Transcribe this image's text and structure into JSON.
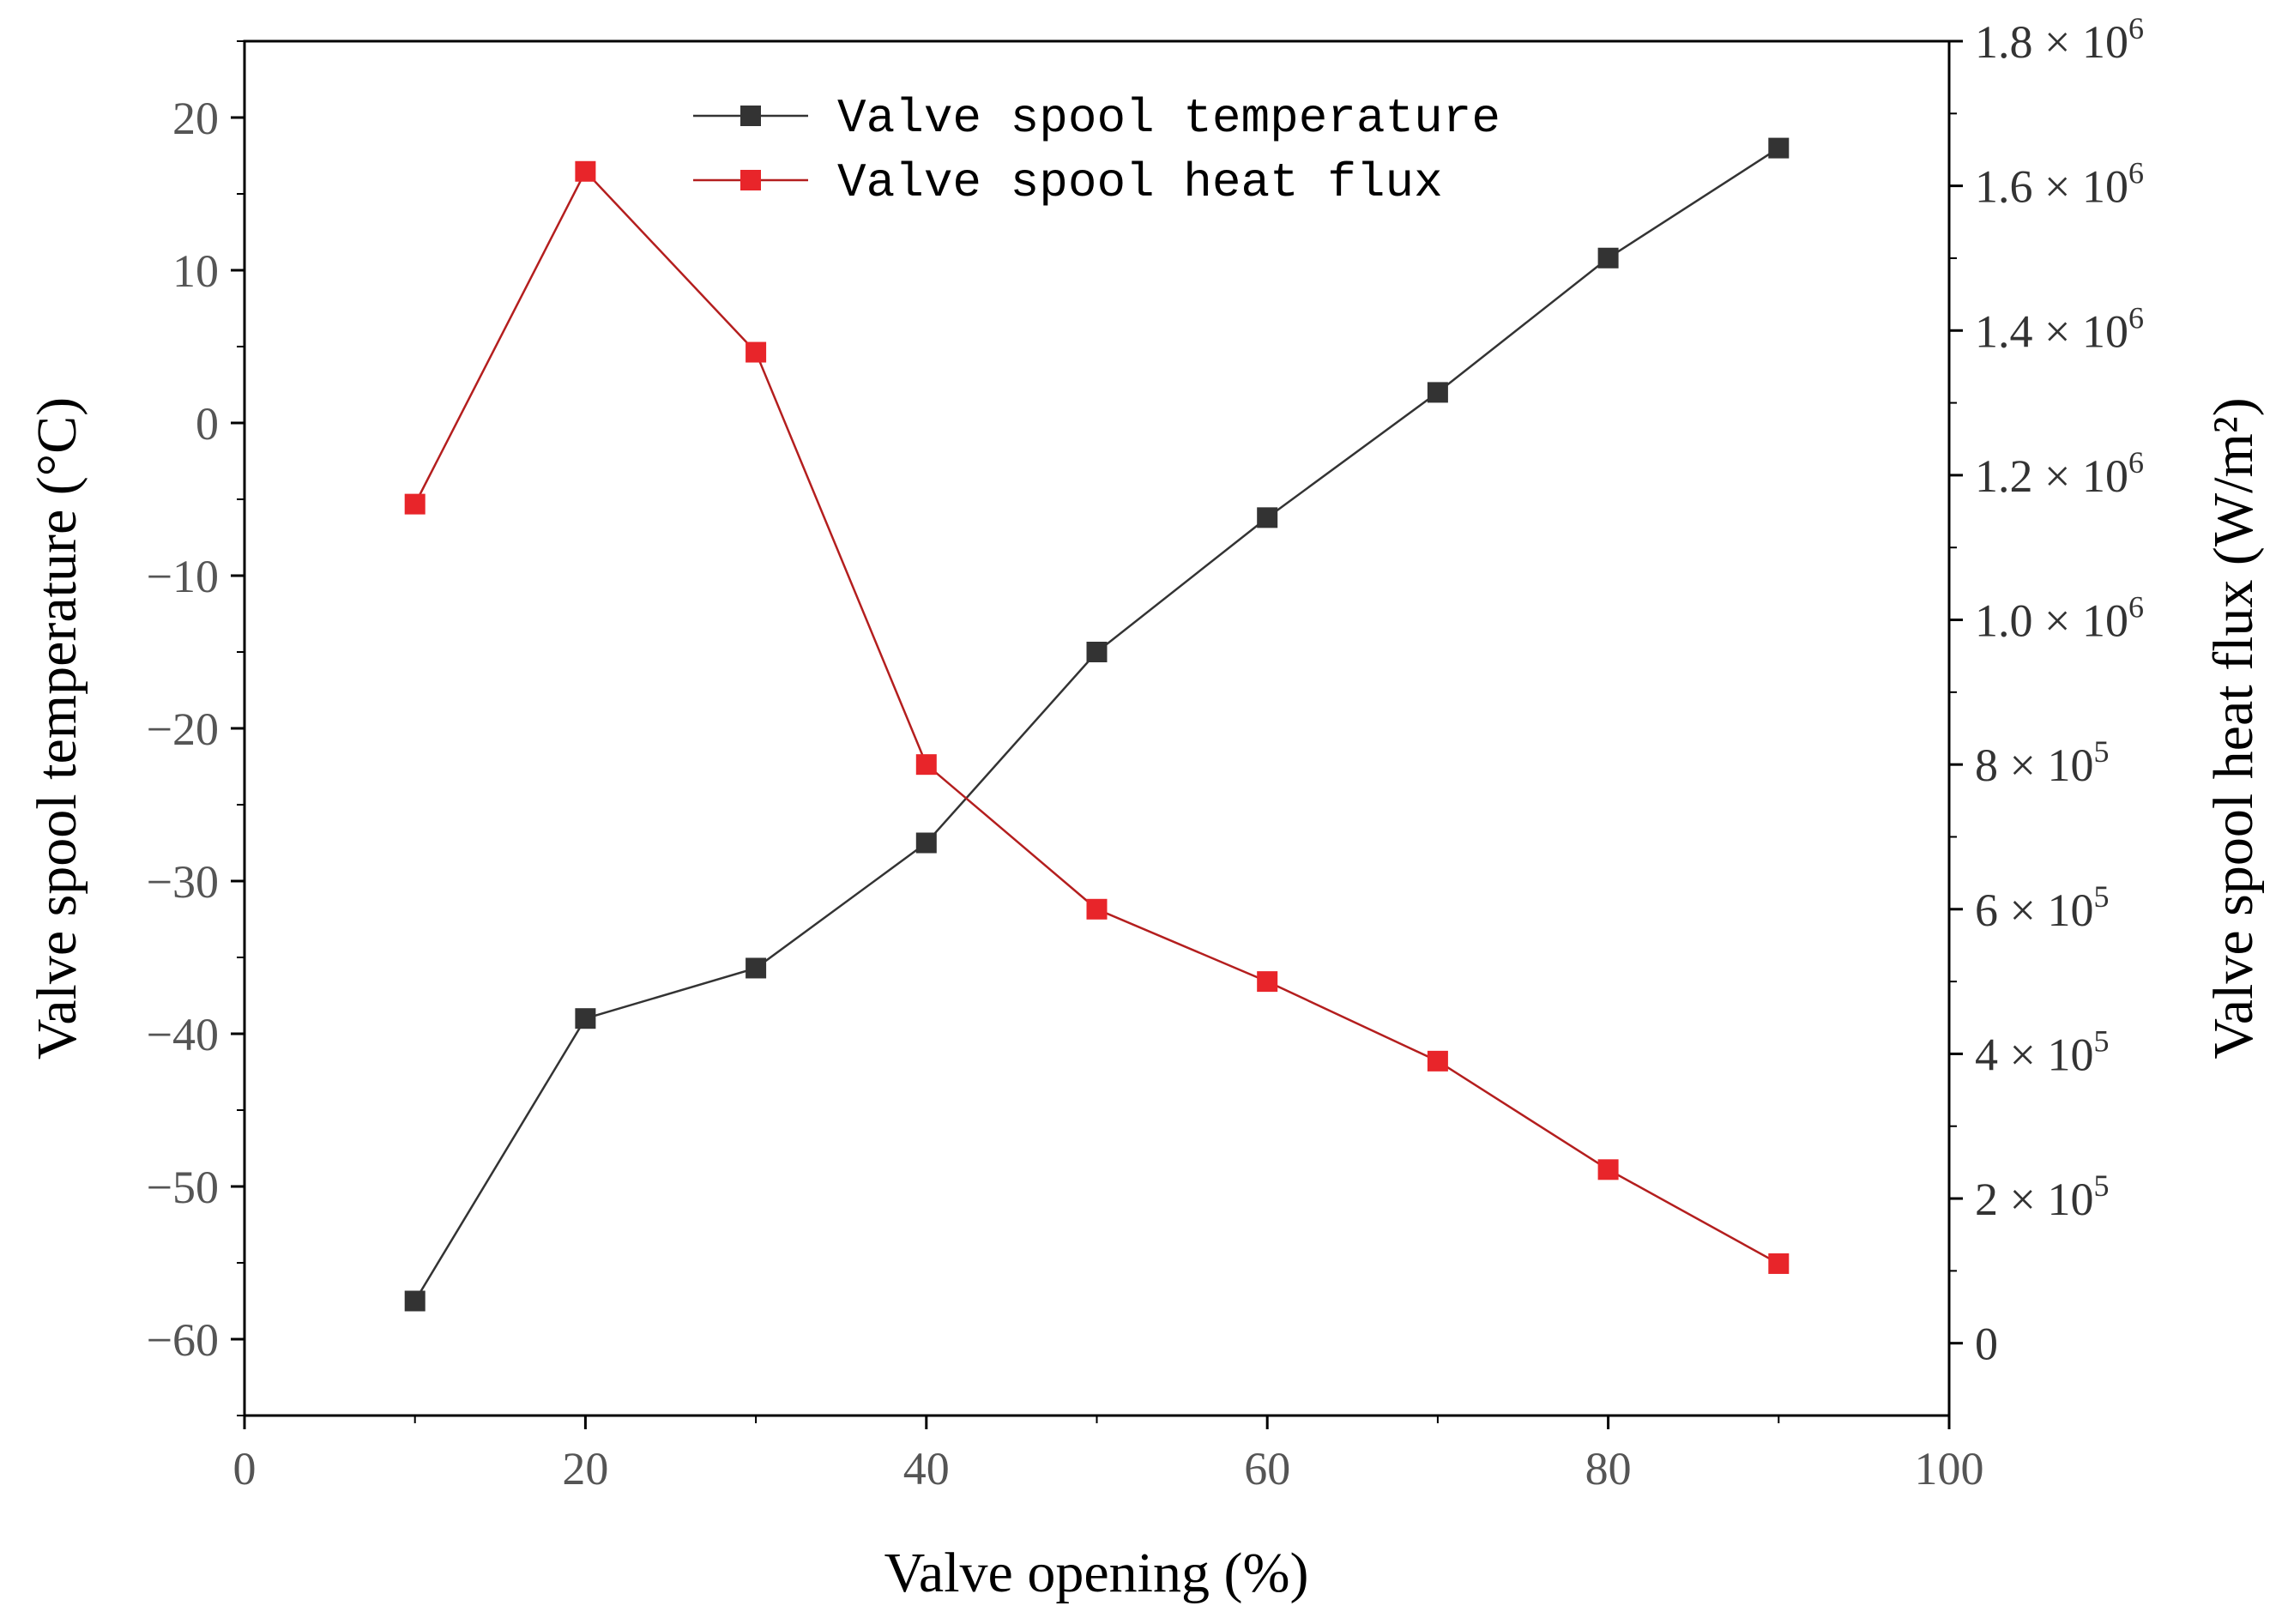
{
  "chart_data": {
    "type": "line",
    "title": "",
    "xlabel": "Valve opening (%)",
    "ylabel": "Valve spool temperature (°C)",
    "y2label": "Valve spool heat flux (W/m²)",
    "xlim": [
      0,
      100
    ],
    "ylim": [
      -65,
      25
    ],
    "y2lim": [
      -100000,
      1800000
    ],
    "x_ticks": [
      "0",
      "20",
      "40",
      "60",
      "80",
      "100"
    ],
    "y_ticks": [
      "20",
      "10",
      "0",
      "-10",
      "-20",
      "-30",
      "-40",
      "-50",
      "-60"
    ],
    "y2_ticks": [
      {
        "mant": "0",
        "exp": ""
      },
      {
        "mant": "2",
        "exp": "5"
      },
      {
        "mant": "4",
        "exp": "5"
      },
      {
        "mant": "6",
        "exp": "5"
      },
      {
        "mant": "8",
        "exp": "5"
      },
      {
        "mant": "1.0",
        "exp": "6"
      },
      {
        "mant": "1.2",
        "exp": "6"
      },
      {
        "mant": "1.4",
        "exp": "6"
      },
      {
        "mant": "1.6",
        "exp": "6"
      },
      {
        "mant": "1.8",
        "exp": "6"
      }
    ],
    "legend_position": "top-center",
    "x": [
      10,
      20,
      30,
      40,
      50,
      60,
      70,
      80,
      90
    ],
    "series": [
      {
        "name": "Valve spool temperature",
        "axis": "left",
        "color": "#333333",
        "values": [
          -57.5,
          -39,
          -35.7,
          -27.5,
          -15,
          -6.2,
          2,
          10.8,
          18
        ]
      },
      {
        "name": "Valve spool heat flux",
        "axis": "right",
        "color": "#b41e1e",
        "marker_color": "#e8252a",
        "values": [
          1160000,
          1620000,
          1370000,
          800000,
          600000,
          500000,
          390000,
          240000,
          110000
        ]
      }
    ]
  }
}
